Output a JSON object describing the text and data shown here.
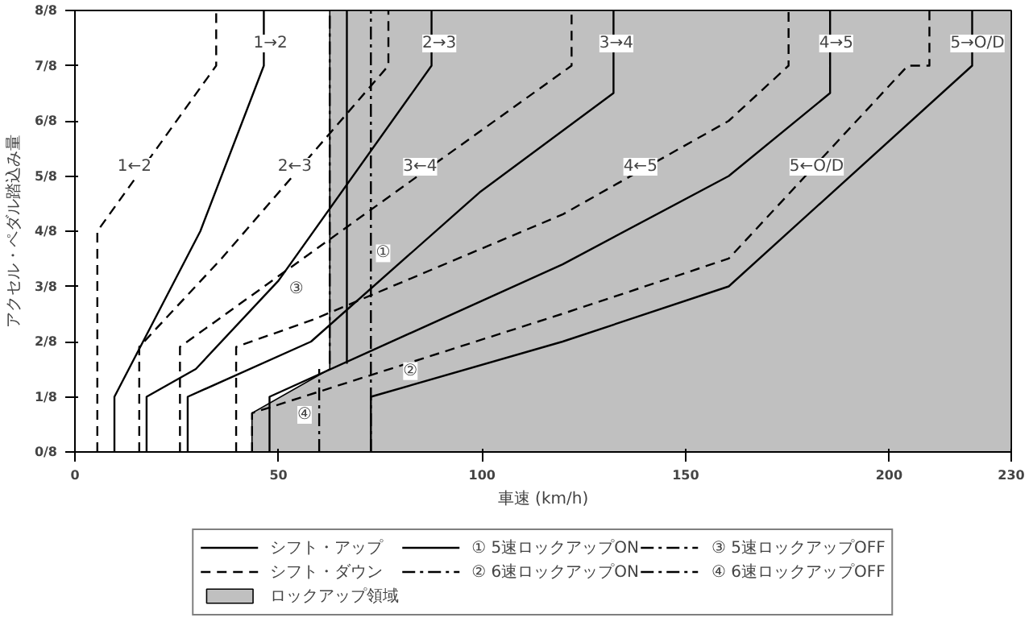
{
  "chart_data": {
    "type": "line",
    "xlabel": "車速 (km/h)",
    "ylabel": "アクセル・ペダル踏込み量",
    "xlim": [
      0,
      230
    ],
    "xticks": [
      0,
      50,
      100,
      150,
      200,
      230
    ],
    "ylim": [
      0,
      1
    ],
    "yticks": [
      {
        "value": 0,
        "label": "0/8"
      },
      {
        "value": 0.125,
        "label": "1/8"
      },
      {
        "value": 0.25,
        "label": "2/8"
      },
      {
        "value": 0.375,
        "label": "3/8"
      },
      {
        "value": 0.5,
        "label": "4/8"
      },
      {
        "value": 0.625,
        "label": "5/8"
      },
      {
        "value": 0.75,
        "label": "6/8"
      },
      {
        "value": 0.875,
        "label": "7/8"
      },
      {
        "value": 1,
        "label": "8/8"
      }
    ],
    "grid": false,
    "legend": "bottom",
    "series": [
      {
        "name": "シフト・アップ",
        "color": "#000000",
        "line_style": "solid",
        "x": [
          9.7,
          9.7,
          30.8,
          46.4,
          46.4,
          null,
          17.6,
          17.6,
          29.7,
          50,
          87.6,
          87.6,
          null,
          27.7,
          27.7,
          58,
          99.4,
          132.3,
          132.3,
          null,
          47.8,
          47.8,
          119.8,
          160.6,
          185.5,
          185.5,
          null,
          72.7,
          72.7,
          119.8,
          160.6,
          220.4,
          220.4
        ],
        "values": [
          0,
          0.125,
          0.5,
          0.875,
          1,
          null,
          0,
          0.125,
          0.188,
          0.388,
          0.875,
          1,
          null,
          0,
          0.125,
          0.25,
          0.588,
          0.813,
          1,
          null,
          0,
          0.125,
          0.425,
          0.625,
          0.813,
          1,
          null,
          0,
          0.125,
          0.25,
          0.375,
          0.875,
          1
        ]
      },
      {
        "name": "① 5速ロックアップON",
        "color": "#000000",
        "line_style": "solid",
        "x": [
          66.8,
          66.8
        ],
        "values": [
          0.2,
          1
        ]
      },
      {
        "name": "③ 5速ロックアップOFF",
        "color": "#000000",
        "line_style": "dashdot",
        "x": [
          62.6,
          62.6
        ],
        "values": [
          0.2,
          1
        ]
      },
      {
        "name": "シフト・ダウン",
        "color": "#000000",
        "line_style": "dashed",
        "x": [
          5.5,
          5.5,
          34.7,
          34.7,
          null,
          15.8,
          15.8,
          36,
          77,
          77,
          null,
          25.8,
          25.8,
          122,
          122,
          null,
          39.6,
          39.6,
          58.6,
          119.8,
          160.6,
          175.3,
          175.3,
          null,
          43.5,
          43.5,
          119.8,
          160.6,
          204.6,
          209.9,
          209.9
        ],
        "values": [
          0,
          0.5,
          0.875,
          1,
          null,
          0,
          0.238,
          0.438,
          0.875,
          1,
          null,
          0,
          0.238,
          0.875,
          1,
          null,
          0,
          0.238,
          0.3,
          0.538,
          0.75,
          0.875,
          1,
          null,
          0,
          0.088,
          0.313,
          0.438,
          0.875,
          0.875,
          1
        ]
      },
      {
        "name": "② 6速ロックアップON",
        "color": "#000000",
        "line_style": "dashdot",
        "x": [
          72.7,
          72.7
        ],
        "values": [
          0,
          1
        ]
      },
      {
        "name": "④ 6速ロックアップOFF",
        "color": "#000000",
        "line_style": "dashdot",
        "x": [
          60,
          60
        ],
        "values": [
          0,
          0.188
        ]
      },
      {
        "name": "ロックアップ領域",
        "type": "area",
        "color": "#c0c0c0",
        "x": [
          43.5,
          43.5,
          62.6,
          62.6,
          230
        ],
        "values": [
          0,
          0.088,
          0.188,
          1,
          1
        ]
      }
    ],
    "annotations": [
      {
        "text": "1→2",
        "x": 48,
        "y": 0.925
      },
      {
        "text": "2→3",
        "x": 89.5,
        "y": 0.925
      },
      {
        "text": "3→4",
        "x": 133,
        "y": 0.925
      },
      {
        "text": "4→5",
        "x": 187,
        "y": 0.925
      },
      {
        "text": "5→O/D",
        "x": 221.7,
        "y": 0.925
      },
      {
        "text": "1←2",
        "x": 14.6,
        "y": 0.646
      },
      {
        "text": "2←3",
        "x": 54,
        "y": 0.646
      },
      {
        "text": "3←4",
        "x": 84.8,
        "y": 0.646
      },
      {
        "text": "4←5",
        "x": 138.9,
        "y": 0.646
      },
      {
        "text": "5←O/D",
        "x": 182.2,
        "y": 0.646
      },
      {
        "text": "①",
        "x": 75.7,
        "y": 0.45
      },
      {
        "text": "②",
        "x": 82.4,
        "y": 0.183
      },
      {
        "text": "③",
        "x": 54.4,
        "y": 0.369
      },
      {
        "text": "④",
        "x": 56.4,
        "y": 0.084
      }
    ]
  }
}
